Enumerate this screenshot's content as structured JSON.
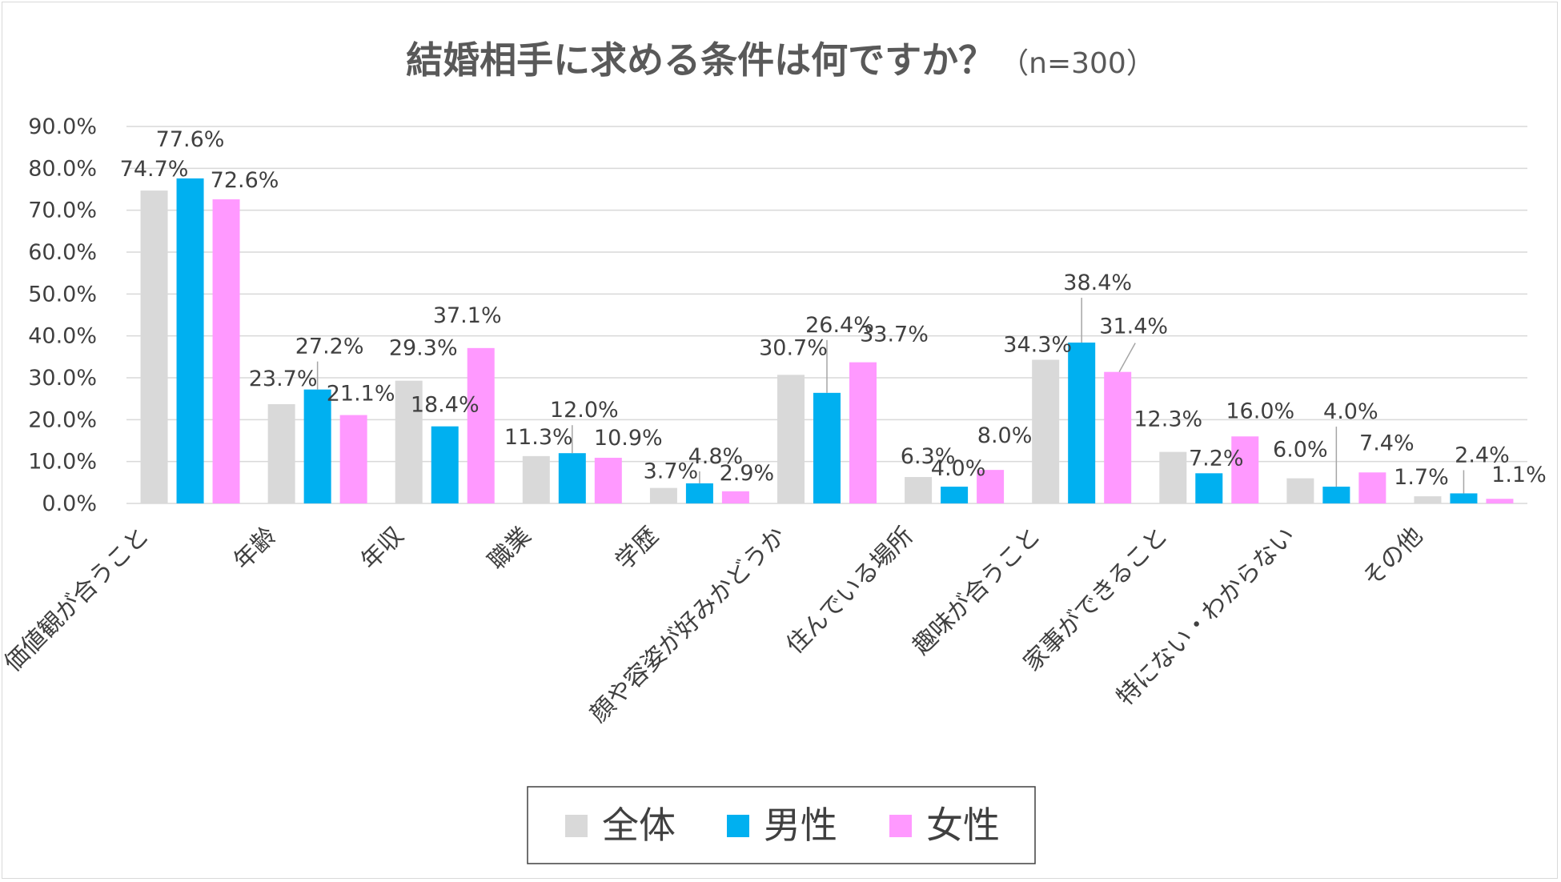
{
  "chart_data": {
    "type": "bar",
    "title": "結婚相手に求める条件は何ですか？",
    "subtitle": "（n=300）",
    "xlabel": "",
    "ylabel": "",
    "ylim": [
      0,
      90
    ],
    "ytick_step": 10,
    "ytick_labels": [
      "0.0%",
      "10.0%",
      "20.0%",
      "30.0%",
      "40.0%",
      "50.0%",
      "60.0%",
      "70.0%",
      "80.0%",
      "90.0%"
    ],
    "grid": true,
    "legend_position": "bottom",
    "categories": [
      "価値観が合うこと",
      "年齢",
      "年収",
      "職業",
      "学歴",
      "顔や容姿が好みかどうか",
      "住んでいる場所",
      "趣味が合うこと",
      "家事ができること",
      "特にない・わからない",
      "その他"
    ],
    "series": [
      {
        "name": "全体",
        "color": "#d9d9d9",
        "values": [
          74.7,
          23.7,
          29.3,
          11.3,
          3.7,
          30.7,
          6.3,
          34.3,
          12.3,
          6.0,
          1.7
        ],
        "labels": [
          "74.7%",
          "23.7%",
          "29.3%",
          "11.3%",
          "3.7%",
          "30.7%",
          "6.3%",
          "34.3%",
          "12.3%",
          "6.0%",
          "1.7%"
        ]
      },
      {
        "name": "男性",
        "color": "#00b0f0",
        "values": [
          77.6,
          27.2,
          18.4,
          12.0,
          4.8,
          26.4,
          4.0,
          38.4,
          7.2,
          4.0,
          2.4
        ],
        "labels": [
          "77.6%",
          "27.2%",
          "18.4%",
          "12.0%",
          "4.8%",
          "26.4%",
          "4.0%",
          "38.4%",
          "7.2%",
          "4.0%",
          "2.4%"
        ]
      },
      {
        "name": "女性",
        "color": "#ff99ff",
        "values": [
          72.6,
          21.1,
          37.1,
          10.9,
          2.9,
          33.7,
          8.0,
          31.4,
          16.0,
          7.4,
          1.1
        ],
        "labels": [
          "72.6%",
          "21.1%",
          "37.1%",
          "10.9%",
          "2.9%",
          "33.7%",
          "8.0%",
          "31.4%",
          "16.0%",
          "7.4%",
          "1.1%"
        ]
      }
    ]
  },
  "colors": {
    "grid": "#d9d9d9",
    "text": "#404040",
    "title": "#595959",
    "leader": "#a6a6a6"
  }
}
